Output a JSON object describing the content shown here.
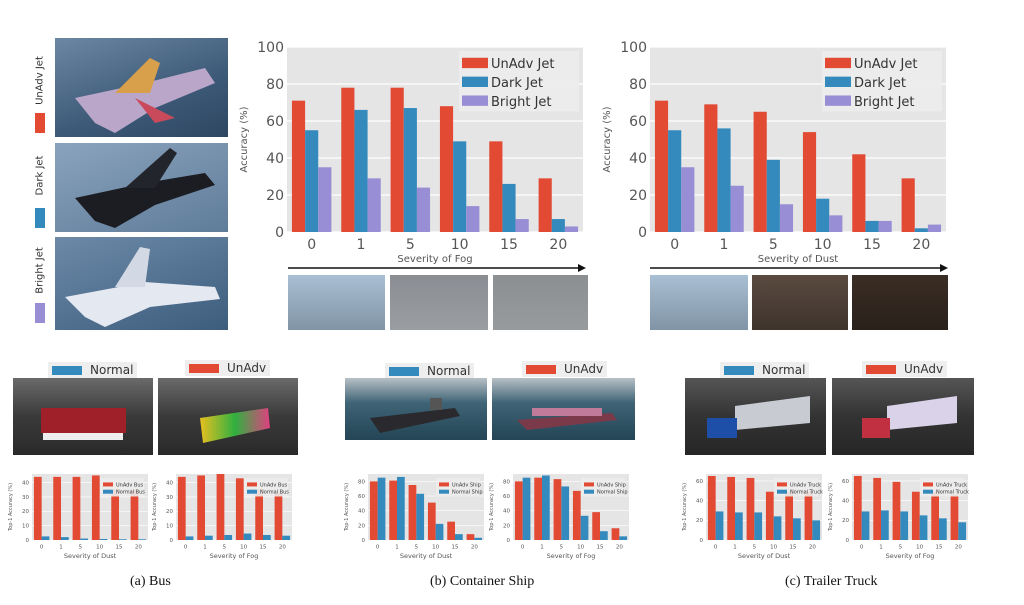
{
  "colors": {
    "unadv": "#E24A33",
    "normal": "#348ABD",
    "bright": "#988ED5",
    "plot_bg": "#E5E5E5"
  },
  "jet_panel": {
    "labels": [
      "UnAdv Jet",
      "Dark Jet",
      "Bright Jet"
    ]
  },
  "bottom_legends": {
    "normal": "Normal",
    "unadv": "UnAdv"
  },
  "captions": [
    "(a) Bus",
    "(b) Container Ship",
    "(c) Trailer Truck"
  ],
  "chart_data": [
    {
      "type": "bar",
      "xlabel": "Severity of Fog",
      "ylabel": "Accuracy (%)",
      "categories": [
        "0",
        "1",
        "5",
        "10",
        "15",
        "20"
      ],
      "ylim": [
        0,
        100
      ],
      "yticks": [
        0,
        20,
        40,
        60,
        80,
        100
      ],
      "legend": "top-right",
      "grid": true,
      "series": [
        {
          "name": "UnAdv Jet",
          "color": "#E24A33",
          "values": [
            71,
            78,
            78,
            68,
            49,
            29
          ]
        },
        {
          "name": "Dark Jet",
          "color": "#348ABD",
          "values": [
            55,
            66,
            67,
            49,
            26,
            7
          ]
        },
        {
          "name": "Bright Jet",
          "color": "#988ED5",
          "values": [
            35,
            29,
            24,
            14,
            7,
            3
          ]
        }
      ]
    },
    {
      "type": "bar",
      "xlabel": "Severity of Dust",
      "ylabel": "Accuracy (%)",
      "categories": [
        "0",
        "1",
        "5",
        "10",
        "15",
        "20"
      ],
      "ylim": [
        0,
        100
      ],
      "yticks": [
        0,
        20,
        40,
        60,
        80,
        100
      ],
      "legend": "top-right",
      "grid": true,
      "series": [
        {
          "name": "UnAdv Jet",
          "color": "#E24A33",
          "values": [
            71,
            69,
            65,
            54,
            42,
            29
          ]
        },
        {
          "name": "Dark Jet",
          "color": "#348ABD",
          "values": [
            55,
            56,
            39,
            18,
            6,
            2
          ]
        },
        {
          "name": "Bright Jet",
          "color": "#988ED5",
          "values": [
            35,
            25,
            15,
            9,
            6,
            4
          ]
        }
      ]
    },
    {
      "type": "bar",
      "xlabel": "Severity of Dust",
      "ylabel": "Top-1 Accuracy (%)",
      "categories": [
        "0",
        "1",
        "5",
        "10",
        "15",
        "20"
      ],
      "ylim": [
        0,
        46
      ],
      "yticks": [
        0,
        10,
        20,
        30,
        40
      ],
      "legend": "top-right",
      "grid": true,
      "series": [
        {
          "name": "UnAdv Bus",
          "color": "#E24A33",
          "values": [
            44,
            44,
            44,
            45,
            35,
            35
          ]
        },
        {
          "name": "Normal Bus",
          "color": "#348ABD",
          "values": [
            2.5,
            2,
            1,
            0.7,
            0.5,
            0.5
          ]
        }
      ]
    },
    {
      "type": "bar",
      "xlabel": "Severity of Fog",
      "ylabel": "Top-1 Accuracy (%)",
      "categories": [
        "0",
        "1",
        "5",
        "10",
        "15",
        "20"
      ],
      "ylim": [
        0,
        46
      ],
      "yticks": [
        0,
        10,
        20,
        30,
        40
      ],
      "legend": "top-right",
      "grid": true,
      "series": [
        {
          "name": "UnAdv Bus",
          "color": "#E24A33",
          "values": [
            44,
            45,
            46,
            43,
            35,
            33
          ]
        },
        {
          "name": "Normal Bus",
          "color": "#348ABD",
          "values": [
            2.5,
            3,
            3.5,
            4.5,
            3.5,
            3
          ]
        }
      ]
    },
    {
      "type": "bar",
      "xlabel": "Severity of Dust",
      "ylabel": "Top-1 Accuracy (%)",
      "categories": [
        "0",
        "1",
        "5",
        "10",
        "15",
        "20"
      ],
      "ylim": [
        0,
        90
      ],
      "yticks": [
        0,
        20,
        40,
        60,
        80
      ],
      "legend": "top-right",
      "grid": true,
      "series": [
        {
          "name": "UnAdv Ship",
          "color": "#E24A33",
          "values": [
            80,
            81,
            75,
            51,
            25,
            8
          ]
        },
        {
          "name": "Normal Ship",
          "color": "#348ABD",
          "values": [
            85,
            86,
            63,
            22,
            8,
            3
          ]
        }
      ]
    },
    {
      "type": "bar",
      "xlabel": "Severity of Fog",
      "ylabel": "Top-1 Accuracy (%)",
      "categories": [
        "0",
        "1",
        "5",
        "10",
        "15",
        "20"
      ],
      "ylim": [
        0,
        90
      ],
      "yticks": [
        0,
        20,
        40,
        60,
        80
      ],
      "legend": "top-right",
      "grid": true,
      "series": [
        {
          "name": "UnAdv Ship",
          "color": "#E24A33",
          "values": [
            80,
            85,
            83,
            67,
            38,
            16
          ]
        },
        {
          "name": "Normal Ship",
          "color": "#348ABD",
          "values": [
            85,
            88,
            73,
            33,
            12,
            5
          ]
        }
      ]
    },
    {
      "type": "bar",
      "xlabel": "Severity of Dust",
      "ylabel": "Top-1 Accuracy (%)",
      "categories": [
        "0",
        "1",
        "5",
        "10",
        "15",
        "20"
      ],
      "ylim": [
        0,
        67
      ],
      "yticks": [
        0,
        20,
        40,
        60
      ],
      "legend": "top-right",
      "grid": true,
      "series": [
        {
          "name": "UnAdv Truck",
          "color": "#E24A33",
          "values": [
            65,
            64,
            63,
            49,
            49,
            49
          ]
        },
        {
          "name": "Normal Truck",
          "color": "#348ABD",
          "values": [
            29,
            28,
            28,
            24,
            22,
            20
          ]
        }
      ]
    },
    {
      "type": "bar",
      "xlabel": "Severity of Fog",
      "ylabel": "Top-1 Accuracy (%)",
      "categories": [
        "0",
        "1",
        "5",
        "10",
        "15",
        "20"
      ],
      "ylim": [
        0,
        67
      ],
      "yticks": [
        0,
        20,
        40,
        60
      ],
      "legend": "top-right",
      "grid": true,
      "series": [
        {
          "name": "UnAdv Truck",
          "color": "#E24A33",
          "values": [
            65,
            63,
            59,
            49,
            49,
            46
          ]
        },
        {
          "name": "Normal Truck",
          "color": "#348ABD",
          "values": [
            29,
            30,
            29,
            25,
            22,
            18
          ]
        }
      ]
    }
  ]
}
